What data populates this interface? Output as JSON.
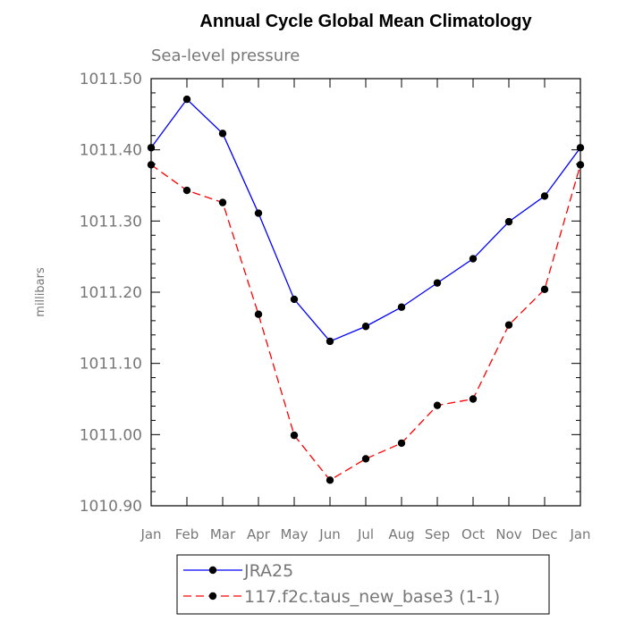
{
  "chart_data": {
    "type": "line",
    "title": "Annual Cycle Global Mean Climatology",
    "subtitle": "Sea-level pressure",
    "xlabel": "",
    "ylabel": "millibars",
    "categories": [
      "Jan",
      "Feb",
      "Mar",
      "Apr",
      "May",
      "Jun",
      "Jul",
      "Aug",
      "Sep",
      "Oct",
      "Nov",
      "Dec",
      "Jan"
    ],
    "ylim": [
      1010.9,
      1011.5
    ],
    "y_ticks": [
      "1010.90",
      "1011.00",
      "1011.10",
      "1011.20",
      "1011.30",
      "1011.40",
      "1011.50"
    ],
    "grid": false,
    "legend_position": "bottom",
    "series": [
      {
        "name": "JRA25",
        "color": "#0000ff",
        "dash": "solid",
        "marker": "circle",
        "values": [
          1011.403,
          1011.471,
          1011.423,
          1011.311,
          1011.19,
          1011.131,
          1011.152,
          1011.179,
          1011.213,
          1011.247,
          1011.299,
          1011.335,
          1011.403
        ]
      },
      {
        "name": "117.f2c.taus_new_base3 (1-1)",
        "color": "#ff0000",
        "dash": "dashed",
        "marker": "circle",
        "values": [
          1011.379,
          1011.343,
          1011.326,
          1011.169,
          1010.999,
          1010.936,
          1010.966,
          1010.988,
          1011.041,
          1011.05,
          1011.154,
          1011.204,
          1011.379
        ]
      }
    ]
  }
}
